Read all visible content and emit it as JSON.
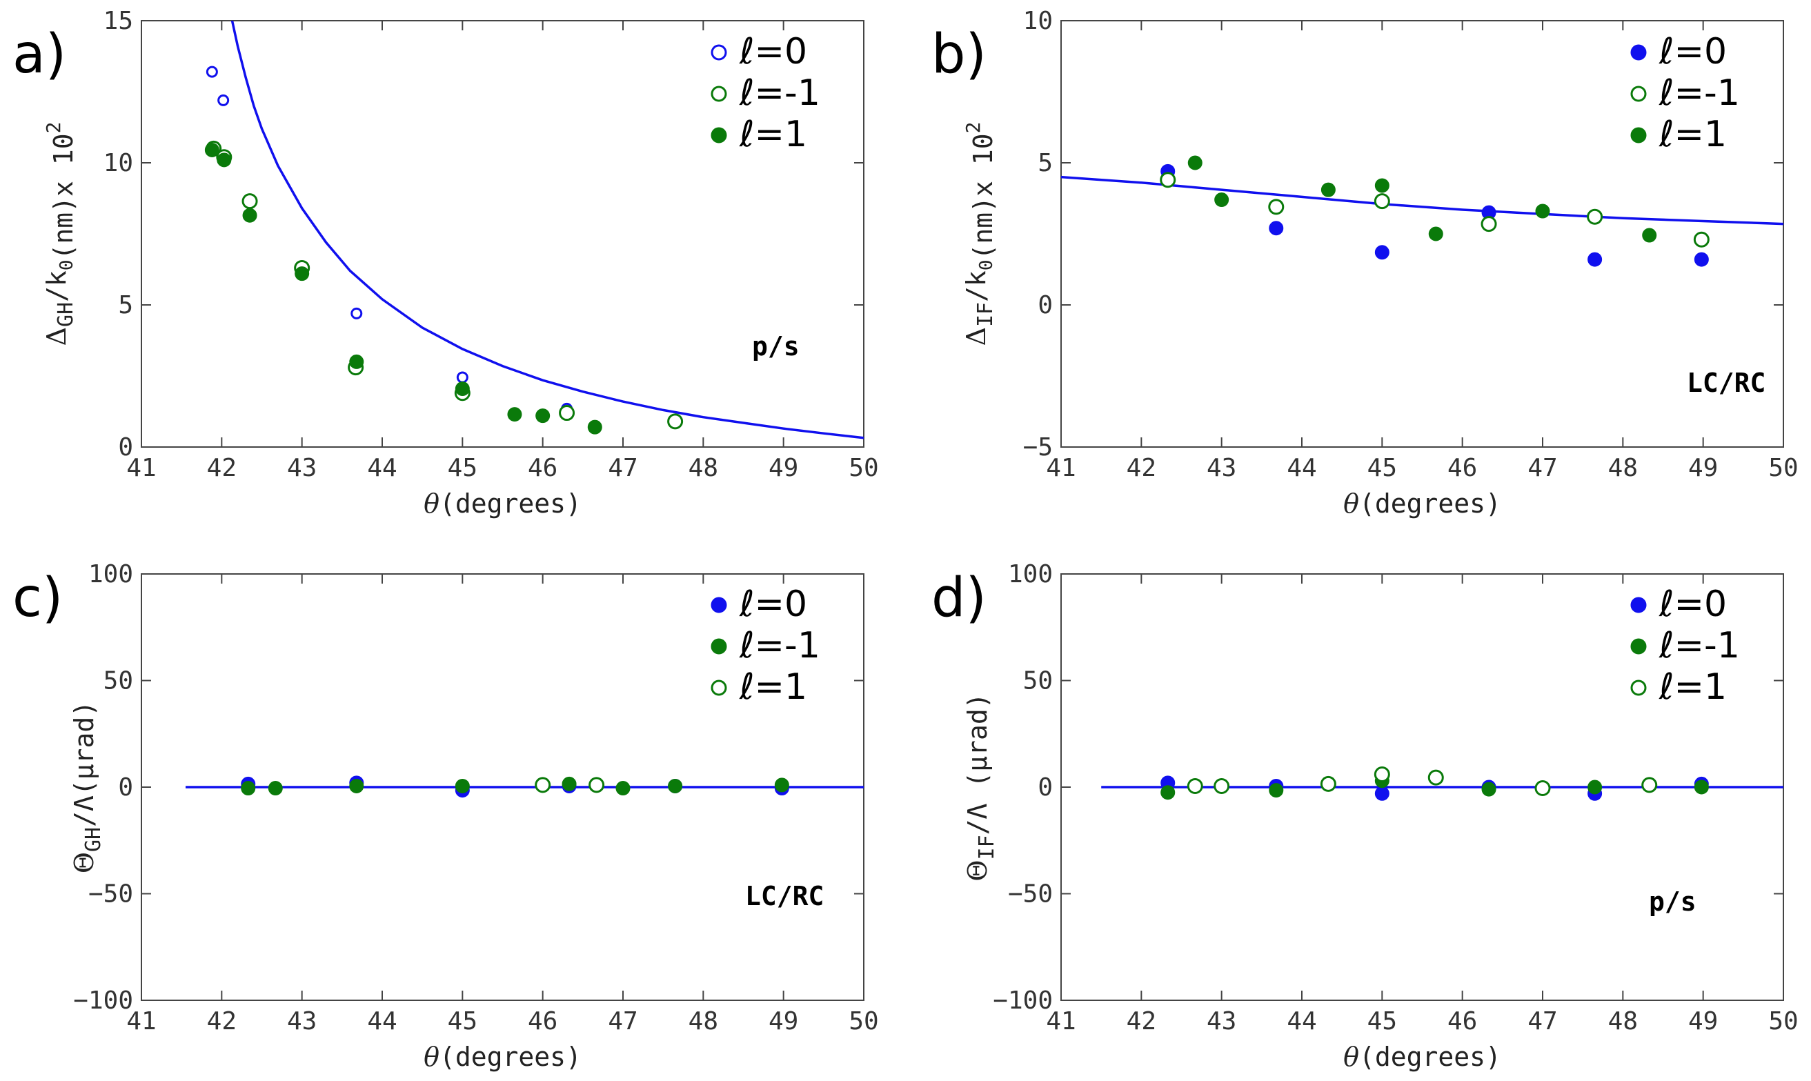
{
  "colors": {
    "blue": "#1010ee",
    "green": "#0a7a0a",
    "axis": "#444444"
  },
  "chart_data": [
    {
      "type": "scatter",
      "panel_label": "a)",
      "annotation": "p/s",
      "xlabel": "θ(degrees)",
      "ylabel": "ΔGH/k0(nm)x 10²",
      "ylabel_parts": {
        "main": "Δ",
        "sub": "GH",
        "mid": "/k",
        "sub2": "0",
        "tail": "(nm)x 10",
        "sup": "2"
      },
      "xlim": [
        41,
        50
      ],
      "ylim": [
        0,
        15
      ],
      "xticks": [
        "41",
        "42",
        "43",
        "44",
        "45",
        "46",
        "47",
        "48",
        "49",
        "50"
      ],
      "yticks": [
        "0",
        "5",
        "10",
        "15"
      ],
      "legend": [
        {
          "label": "ℓ=0",
          "color": "blue",
          "filled": false
        },
        {
          "label": "ℓ=-1",
          "color": "green",
          "filled": false
        },
        {
          "label": "ℓ=1",
          "color": "green",
          "filled": true
        }
      ],
      "curve": {
        "name": "theory",
        "color": "blue",
        "x": [
          42.13,
          42.2,
          42.3,
          42.4,
          42.5,
          42.7,
          43.0,
          43.3,
          43.6,
          44.0,
          44.5,
          45.0,
          45.5,
          46.0,
          46.5,
          47.0,
          47.5,
          48.0,
          48.5,
          49.0,
          49.5,
          50.0
        ],
        "y": [
          15,
          14.1,
          13.0,
          12.0,
          11.2,
          9.9,
          8.4,
          7.2,
          6.2,
          5.2,
          4.2,
          3.45,
          2.85,
          2.35,
          1.95,
          1.6,
          1.3,
          1.05,
          0.85,
          0.65,
          0.48,
          0.32
        ]
      },
      "series": [
        {
          "name": "ℓ=0",
          "color": "blue",
          "filled": false,
          "size": "small",
          "x": [
            41.88,
            42.02,
            42.35,
            43.0,
            43.68,
            45.0,
            46.3,
            47.65
          ],
          "y": [
            13.2,
            12.2,
            8.6,
            6.3,
            4.7,
            2.45,
            1.35,
            0.95
          ]
        },
        {
          "name": "ℓ=-1",
          "color": "green",
          "filled": false,
          "size": "large",
          "x": [
            41.9,
            42.03,
            42.35,
            43.0,
            43.67,
            45.0,
            46.3,
            47.65
          ],
          "y": [
            10.5,
            10.2,
            8.65,
            6.3,
            2.8,
            1.9,
            1.2,
            0.9
          ]
        },
        {
          "name": "ℓ=1",
          "color": "green",
          "filled": true,
          "size": "large",
          "x": [
            41.88,
            42.03,
            42.35,
            43.0,
            43.68,
            45.0,
            45.65,
            46.0,
            46.65
          ],
          "y": [
            10.45,
            10.1,
            8.15,
            6.1,
            3.0,
            2.05,
            1.15,
            1.1,
            0.7
          ]
        }
      ]
    },
    {
      "type": "scatter",
      "panel_label": "b)",
      "annotation": "LC/RC",
      "xlabel": "θ(degrees)",
      "ylabel": "ΔIF/k0(nm)x 10²",
      "ylabel_parts": {
        "main": "Δ",
        "sub": "IF",
        "mid": "/k",
        "sub2": "0",
        "tail": "(nm)x 10",
        "sup": "2"
      },
      "xlim": [
        41,
        50
      ],
      "ylim": [
        -5,
        10
      ],
      "xticks": [
        "41",
        "42",
        "43",
        "44",
        "45",
        "46",
        "47",
        "48",
        "49",
        "50"
      ],
      "yticks": [
        "−5",
        "0",
        "5",
        "10"
      ],
      "legend": [
        {
          "label": "ℓ=0",
          "color": "blue",
          "filled": true
        },
        {
          "label": "ℓ=-1",
          "color": "green",
          "filled": false
        },
        {
          "label": "ℓ=1",
          "color": "green",
          "filled": true
        }
      ],
      "curve": {
        "name": "theory",
        "color": "blue",
        "x": [
          41,
          42,
          43,
          44,
          45,
          46,
          47,
          48,
          49,
          50
        ],
        "y": [
          4.5,
          4.3,
          4.05,
          3.8,
          3.55,
          3.35,
          3.2,
          3.05,
          2.95,
          2.85
        ]
      },
      "series": [
        {
          "name": "ℓ=0",
          "color": "blue",
          "filled": true,
          "size": "large",
          "x": [
            42.33,
            43.68,
            45.0,
            46.33,
            47.65,
            48.98
          ],
          "y": [
            4.7,
            2.7,
            1.85,
            3.25,
            1.6,
            1.6
          ]
        },
        {
          "name": "ℓ=-1",
          "color": "green",
          "filled": false,
          "size": "large",
          "x": [
            42.33,
            43.68,
            45.0,
            46.33,
            47.65,
            48.98
          ],
          "y": [
            4.4,
            3.45,
            3.65,
            2.85,
            3.1,
            2.3
          ]
        },
        {
          "name": "ℓ=1",
          "color": "green",
          "filled": true,
          "size": "large",
          "x": [
            42.67,
            43.0,
            44.33,
            45.0,
            45.67,
            47.0,
            48.33
          ],
          "y": [
            5.0,
            3.7,
            4.05,
            4.2,
            2.5,
            3.3,
            2.45
          ]
        }
      ]
    },
    {
      "type": "scatter",
      "panel_label": "c)",
      "annotation": "LC/RC",
      "xlabel": "θ(degrees)",
      "ylabel": "ΘGH/Λ(μrad)",
      "ylabel_parts": {
        "main": "Θ",
        "sub": "GH",
        "mid": "/Λ",
        "sub2": "",
        "tail": "(μrad)",
        "sup": ""
      },
      "xlim": [
        41,
        50
      ],
      "ylim": [
        -100,
        100
      ],
      "xticks": [
        "41",
        "42",
        "43",
        "44",
        "45",
        "46",
        "47",
        "48",
        "49",
        "50"
      ],
      "yticks": [
        "−100",
        "−50",
        "0",
        "50",
        "100"
      ],
      "legend": [
        {
          "label": "ℓ=0",
          "color": "blue",
          "filled": true
        },
        {
          "label": "ℓ=-1",
          "color": "green",
          "filled": true
        },
        {
          "label": "ℓ=1",
          "color": "green",
          "filled": false
        }
      ],
      "curve": {
        "name": "theory",
        "color": "blue",
        "x": [
          41.55,
          50
        ],
        "y": [
          0,
          0
        ]
      },
      "series": [
        {
          "name": "ℓ=0",
          "color": "blue",
          "filled": true,
          "size": "large",
          "x": [
            42.33,
            43.68,
            45.0,
            46.33,
            47.65,
            48.98
          ],
          "y": [
            1.5,
            2.0,
            -1.5,
            0.5,
            0.5,
            -0.5
          ]
        },
        {
          "name": "ℓ=-1",
          "color": "green",
          "filled": true,
          "size": "large",
          "x": [
            42.33,
            42.67,
            43.68,
            45.0,
            46.33,
            47.0,
            47.65,
            48.98
          ],
          "y": [
            -0.5,
            -0.5,
            0.5,
            0.5,
            1.5,
            -0.5,
            0.5,
            1.0
          ]
        },
        {
          "name": "ℓ=1",
          "color": "green",
          "filled": false,
          "size": "large",
          "x": [
            46.0,
            46.67
          ],
          "y": [
            1.0,
            1.0
          ]
        }
      ]
    },
    {
      "type": "scatter",
      "panel_label": "d)",
      "annotation": "p/s",
      "xlabel": "θ(degrees)",
      "ylabel": "ΘIF/Λ (μrad)",
      "ylabel_parts": {
        "main": "Θ",
        "sub": "IF",
        "mid": "/Λ",
        "sub2": "",
        "tail": " (μrad)",
        "sup": ""
      },
      "xlim": [
        41,
        50
      ],
      "ylim": [
        -100,
        100
      ],
      "xticks": [
        "41",
        "42",
        "43",
        "44",
        "45",
        "46",
        "47",
        "48",
        "49",
        "50"
      ],
      "yticks": [
        "−100",
        "−50",
        "0",
        "50",
        "100"
      ],
      "legend": [
        {
          "label": "ℓ=0",
          "color": "blue",
          "filled": true
        },
        {
          "label": "ℓ=-1",
          "color": "green",
          "filled": true
        },
        {
          "label": "ℓ=1",
          "color": "green",
          "filled": false
        }
      ],
      "curve": {
        "name": "theory",
        "color": "blue",
        "x": [
          41.5,
          50
        ],
        "y": [
          0,
          0
        ]
      },
      "series": [
        {
          "name": "ℓ=0",
          "color": "blue",
          "filled": true,
          "size": "large",
          "x": [
            42.33,
            43.68,
            45.0,
            46.33,
            47.65,
            48.98
          ],
          "y": [
            2.0,
            0.5,
            -3.0,
            0.0,
            -3.0,
            1.5
          ]
        },
        {
          "name": "ℓ=-1",
          "color": "green",
          "filled": true,
          "size": "large",
          "x": [
            42.33,
            43.68,
            45.0,
            46.33,
            47.65,
            48.98
          ],
          "y": [
            -2.5,
            -1.5,
            3.0,
            -1.0,
            0.0,
            0.0
          ]
        },
        {
          "name": "ℓ=1",
          "color": "green",
          "filled": false,
          "size": "large",
          "x": [
            42.67,
            43.0,
            44.33,
            45.0,
            45.67,
            47.0,
            48.33
          ],
          "y": [
            0.5,
            0.5,
            1.5,
            6.0,
            4.5,
            -0.5,
            1.0
          ]
        }
      ]
    }
  ]
}
